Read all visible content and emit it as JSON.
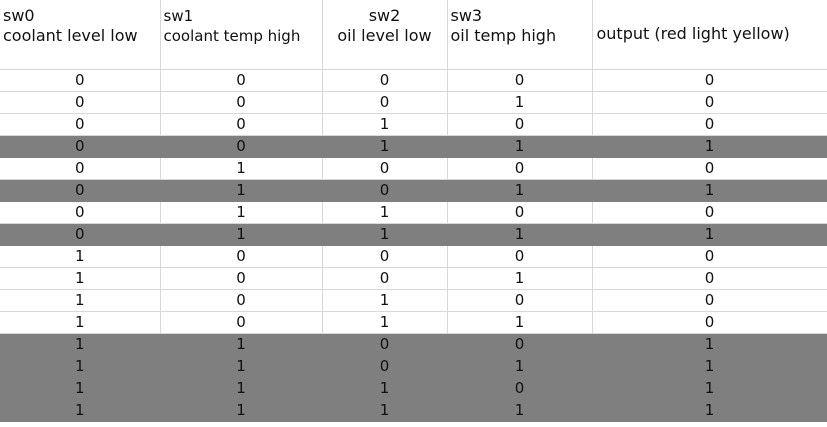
{
  "headers": {
    "sw0": {
      "line1": "sw0",
      "line2": "coolant level low"
    },
    "sw1": {
      "line1": "sw1",
      "line2": "coolant temp high"
    },
    "sw2": {
      "line1": "sw2",
      "line2": "oil level low"
    },
    "sw3": {
      "line1": "sw3",
      "line2": "oil temp high"
    },
    "output": {
      "line1": "output (red light yellow)"
    }
  },
  "rows": [
    {
      "cells": [
        "0",
        "0",
        "0",
        "0",
        "0"
      ],
      "highlight": false
    },
    {
      "cells": [
        "0",
        "0",
        "0",
        "1",
        "0"
      ],
      "highlight": false
    },
    {
      "cells": [
        "0",
        "0",
        "1",
        "0",
        "0"
      ],
      "highlight": false
    },
    {
      "cells": [
        "0",
        "0",
        "1",
        "1",
        "1"
      ],
      "highlight": true
    },
    {
      "cells": [
        "0",
        "1",
        "0",
        "0",
        "0"
      ],
      "highlight": false
    },
    {
      "cells": [
        "0",
        "1",
        "0",
        "1",
        "1"
      ],
      "highlight": true
    },
    {
      "cells": [
        "0",
        "1",
        "1",
        "0",
        "0"
      ],
      "highlight": false
    },
    {
      "cells": [
        "0",
        "1",
        "1",
        "1",
        "1"
      ],
      "highlight": true
    },
    {
      "cells": [
        "1",
        "0",
        "0",
        "0",
        "0"
      ],
      "highlight": false
    },
    {
      "cells": [
        "1",
        "0",
        "0",
        "1",
        "0"
      ],
      "highlight": false
    },
    {
      "cells": [
        "1",
        "0",
        "1",
        "0",
        "0"
      ],
      "highlight": false
    },
    {
      "cells": [
        "1",
        "0",
        "1",
        "1",
        "0"
      ],
      "highlight": false
    },
    {
      "cells": [
        "1",
        "1",
        "0",
        "0",
        "1"
      ],
      "highlight": true
    },
    {
      "cells": [
        "1",
        "1",
        "0",
        "1",
        "1"
      ],
      "highlight": true
    },
    {
      "cells": [
        "1",
        "1",
        "1",
        "0",
        "1"
      ],
      "highlight": true
    },
    {
      "cells": [
        "1",
        "1",
        "1",
        "1",
        "1"
      ],
      "highlight": true
    }
  ],
  "colors": {
    "highlight": "#7f7f7f",
    "grid": "#d8d8d8"
  }
}
